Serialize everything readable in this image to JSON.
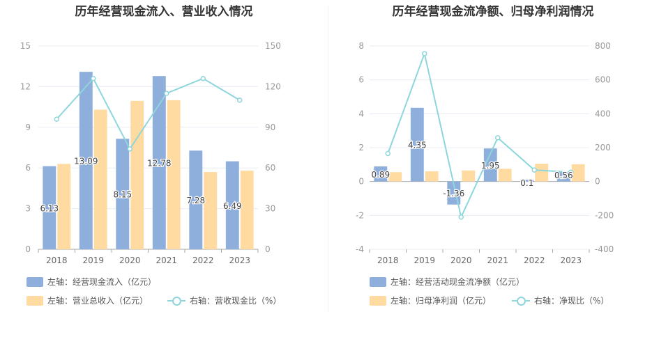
{
  "colors": {
    "bar1": "#8eaedc",
    "bar2": "#ffdba2",
    "line": "#8dd6dc",
    "axis": "#999999",
    "grid": "#e8ecf4"
  },
  "chart_data": [
    {
      "type": "bar",
      "title": "历年经营现金流入、营业收入情况",
      "categories": [
        "2018",
        "2019",
        "2020",
        "2021",
        "2022",
        "2023"
      ],
      "left_axis": {
        "ticks": [
          "0",
          "3",
          "6",
          "9",
          "12",
          "15"
        ],
        "ylim": [
          0,
          15
        ]
      },
      "right_axis": {
        "ticks": [
          "0",
          "30",
          "60",
          "90",
          "120",
          "150"
        ],
        "ylim": [
          0,
          150
        ]
      },
      "series": [
        {
          "name": "左轴：经营现金流入（亿元）",
          "kind": "bar",
          "axis": "left",
          "values": [
            6.13,
            13.09,
            8.15,
            12.78,
            7.28,
            6.49
          ],
          "labels": [
            "6.13",
            "13.09",
            "8.15",
            "12.78",
            "7.28",
            "6.49"
          ]
        },
        {
          "name": "左轴：营业总收入（亿元）",
          "kind": "bar",
          "axis": "left",
          "values": [
            6.3,
            10.3,
            10.95,
            11.0,
            5.7,
            5.8
          ]
        },
        {
          "name": "右轴：营收现金比（%）",
          "kind": "line",
          "axis": "right",
          "values": [
            96,
            126,
            74,
            115,
            126,
            110
          ]
        }
      ]
    },
    {
      "type": "bar",
      "title": "历年经营现金流净额、归母净利润情况",
      "categories": [
        "2018",
        "2019",
        "2020",
        "2021",
        "2022",
        "2023"
      ],
      "left_axis": {
        "ticks": [
          "-4",
          "-2",
          "0",
          "2",
          "4",
          "6",
          "8"
        ],
        "ylim": [
          -4,
          8
        ]
      },
      "right_axis": {
        "ticks": [
          "-400",
          "-200",
          "0",
          "200",
          "400",
          "600",
          "800"
        ],
        "ylim": [
          -400,
          800
        ]
      },
      "series": [
        {
          "name": "左轴：经营活动现金流净额（亿元）",
          "kind": "bar",
          "axis": "left",
          "values": [
            0.89,
            4.35,
            -1.36,
            1.95,
            0.1,
            0.56
          ],
          "labels": [
            "0.89",
            "4.35",
            "-1.36",
            "1.95",
            "0.1",
            "0.56"
          ]
        },
        {
          "name": "左轴：归母净利润（亿元）",
          "kind": "bar",
          "axis": "left",
          "values": [
            0.55,
            0.6,
            0.65,
            0.75,
            1.05,
            1.02
          ]
        },
        {
          "name": "右轴：净现比（%）",
          "kind": "line",
          "axis": "right",
          "values": [
            165,
            755,
            -210,
            258,
            68,
            55
          ]
        }
      ]
    }
  ]
}
